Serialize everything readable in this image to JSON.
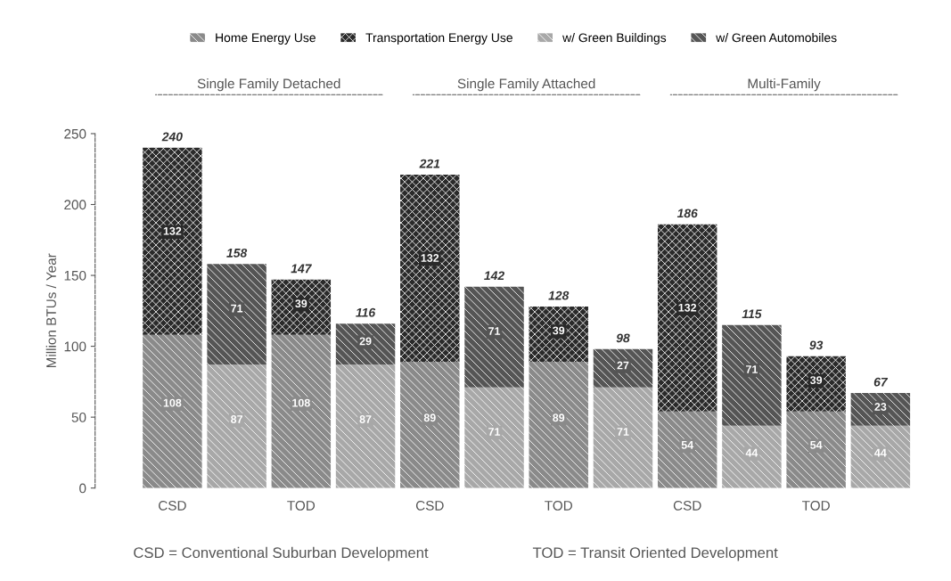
{
  "chart_data": {
    "type": "bar",
    "stacked": true,
    "ylabel": "Million BTUs / Year",
    "categories": [
      "CSD",
      null,
      "TOD",
      null,
      "CSD",
      null,
      "TOD",
      null,
      "CSD",
      null,
      "TOD",
      null
    ],
    "series": [
      {
        "name": "Home Energy Use",
        "color": "#8a8a8a",
        "values": [
          108,
          null,
          108,
          null,
          89,
          null,
          89,
          null,
          54,
          null,
          54,
          null
        ]
      },
      {
        "name": "Transportation Energy Use",
        "color": "#2a2a2a",
        "values": [
          132,
          null,
          39,
          null,
          132,
          null,
          39,
          null,
          132,
          null,
          39,
          null
        ]
      },
      {
        "name": "w/ Green Buildings",
        "color": "#a8a8a8",
        "values": [
          null,
          87,
          null,
          87,
          null,
          71,
          null,
          71,
          null,
          44,
          null,
          44
        ]
      },
      {
        "name": "w/ Green Automobiles",
        "color": "#555555",
        "values": [
          null,
          71,
          null,
          29,
          null,
          71,
          null,
          27,
          null,
          71,
          null,
          23
        ]
      }
    ],
    "data_labels": true,
    "totals": [
      "240",
      "158",
      "147",
      "116",
      "221",
      "142",
      "128",
      "98",
      "186",
      "115",
      "93",
      "67"
    ],
    "ylim": [
      0,
      250
    ],
    "yticks": [
      0,
      50,
      100,
      150,
      200,
      250
    ],
    "grid": false,
    "legend": "top",
    "annotations": [
      "Single Family Detached",
      "Single Family Attached",
      "Multi-Family",
      "CSD = Conventional Suburban Development",
      "TOD = Transit Oriented Development"
    ]
  }
}
